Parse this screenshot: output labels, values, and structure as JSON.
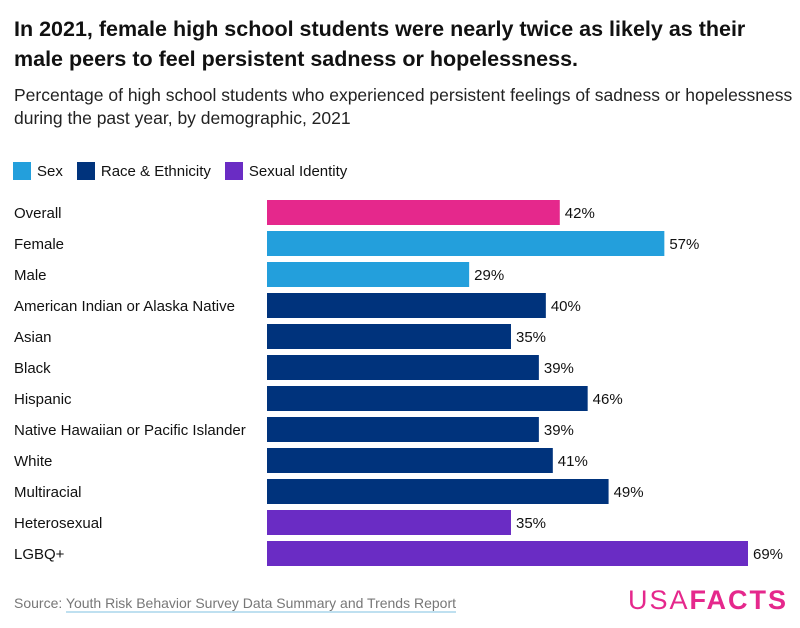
{
  "title": "In 2021, female high school students were nearly twice as likely as their male peers to feel persistent sadness or hopelessness.",
  "subtitle": "Percentage of high school students who experienced persistent feelings of sadness or hopelessness during the past year, by demographic, 2021",
  "legend": [
    {
      "label": "Sex",
      "color": "#239fdc"
    },
    {
      "label": "Race & Ethnicity",
      "color": "#00337c"
    },
    {
      "label": "Sexual Identity",
      "color": "#6a2cc4"
    }
  ],
  "source": {
    "prefix": "Source: ",
    "link_text": "Youth Risk Behavior Survey Data Summary and Trends Report"
  },
  "logo": {
    "part1": "USA",
    "part2": "FACTS"
  },
  "chart_data": {
    "type": "bar",
    "orientation": "horizontal",
    "categories": [
      "Overall",
      "Female",
      "Male",
      "American Indian or Alaska Native",
      "Asian",
      "Black",
      "Hispanic",
      "Native Hawaiian or Pacific Islander",
      "White",
      "Multiracial",
      "Heterosexual",
      "LGBQ+"
    ],
    "values": [
      42,
      57,
      29,
      40,
      35,
      39,
      46,
      39,
      41,
      49,
      35,
      69
    ],
    "data_labels": [
      "42%",
      "57%",
      "29%",
      "40%",
      "35%",
      "39%",
      "46%",
      "39%",
      "41%",
      "49%",
      "35%",
      "69%"
    ],
    "groups": [
      "Overall",
      "Sex",
      "Sex",
      "Race & Ethnicity",
      "Race & Ethnicity",
      "Race & Ethnicity",
      "Race & Ethnicity",
      "Race & Ethnicity",
      "Race & Ethnicity",
      "Race & Ethnicity",
      "Sexual Identity",
      "Sexual Identity"
    ],
    "colors": {
      "Overall": "#e5288c",
      "Sex": "#239fdc",
      "Race & Ethnicity": "#00337c",
      "Sexual Identity": "#6a2cc4"
    },
    "xlim": [
      0,
      70
    ],
    "unit": "%",
    "grid": false,
    "legend_position": "top-left"
  }
}
